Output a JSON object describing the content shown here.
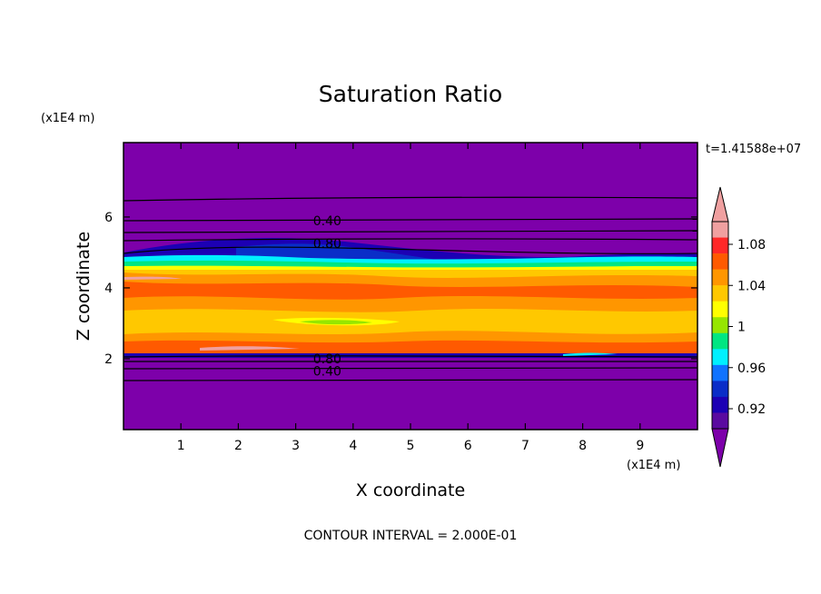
{
  "chart_data": {
    "type": "heatmap",
    "title": "Saturation Ratio",
    "xlabel": "X coordinate",
    "ylabel": "Z coordinate",
    "x_unit": "(x1E4 m)",
    "y_unit": "(x1E4 m)",
    "xlim": [
      0,
      10
    ],
    "ylim": [
      0,
      8.1
    ],
    "x_ticks": [
      1,
      2,
      3,
      4,
      5,
      6,
      7,
      8,
      9
    ],
    "y_ticks": [
      2,
      4,
      6
    ],
    "time_label": "t=1.41588e+07",
    "footer": "CONTOUR INTERVAL = 2.000E-01",
    "colorbar": {
      "labels": [
        "1.08",
        "1.04",
        "1",
        "0.96",
        "0.92"
      ],
      "label_values": [
        1.08,
        1.04,
        1.0,
        0.96,
        0.92
      ],
      "levels": [
        0.92,
        0.94,
        0.96,
        0.98,
        1.0,
        1.02,
        1.04,
        1.06,
        1.08,
        1.1
      ],
      "colors": [
        "#5a0aa0",
        "#1c00b4",
        "#0a2dc8",
        "#0f73ff",
        "#00f0ff",
        "#00e682",
        "#96e600",
        "#ffff00",
        "#ffc800",
        "#ff9600",
        "#ff5a00",
        "#ff2828",
        "#f0a0a0"
      ],
      "under_color": "#7d00aa",
      "over_color": "#f0a0a0"
    },
    "contour_labels": [
      {
        "text": "0.40",
        "x": 3.55,
        "z": 5.9
      },
      {
        "text": "0.80",
        "x": 3.55,
        "z": 5.25
      },
      {
        "text": "0.80",
        "x": 3.55,
        "z": 2.0
      },
      {
        "text": "0.40",
        "x": 3.55,
        "z": 1.65
      }
    ]
  }
}
